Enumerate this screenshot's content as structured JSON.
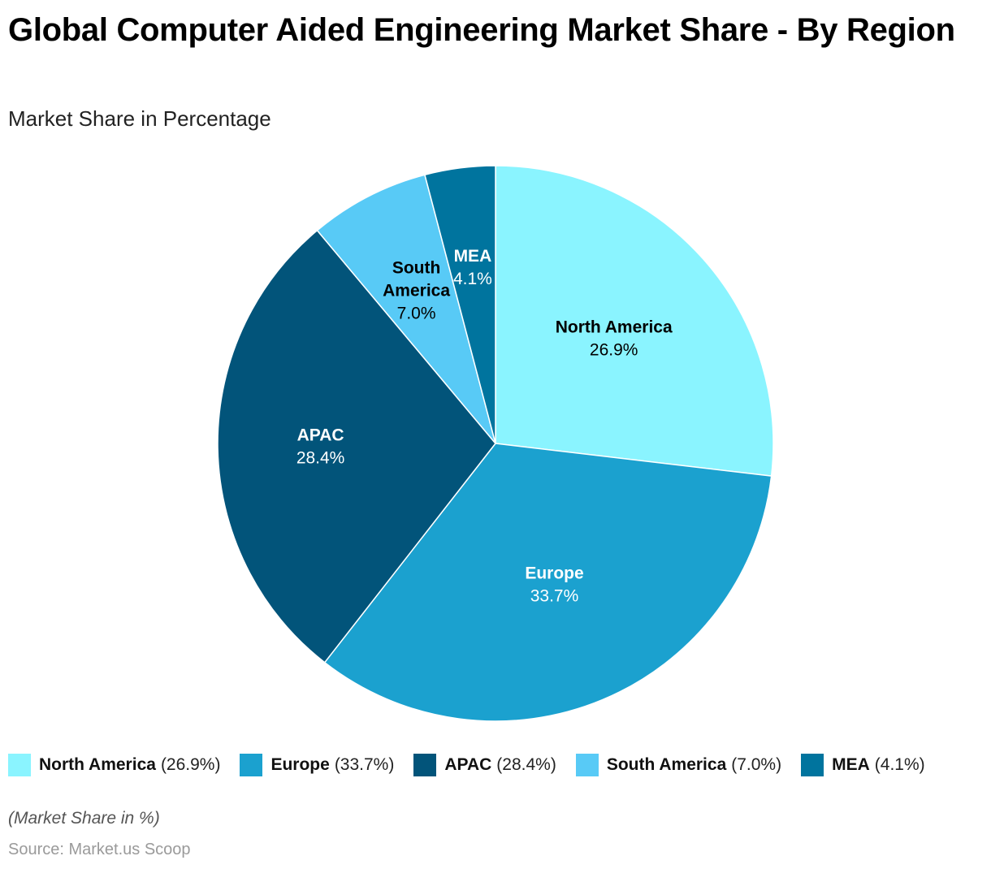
{
  "header": {
    "title": "Global Computer Aided Engineering Market Share - By Region",
    "subtitle": "Market Share in Percentage"
  },
  "chart_data": {
    "type": "pie",
    "title": "Global Computer Aided Engineering Market Share - By Region",
    "subtitle": "Market Share in Percentage",
    "unit": "%",
    "categories": [
      "North America",
      "Europe",
      "APAC",
      "South America",
      "MEA"
    ],
    "values": [
      26.9,
      33.7,
      28.4,
      7.0,
      4.1
    ],
    "value_labels": [
      "26.9%",
      "33.7%",
      "28.4%",
      "7.0%",
      "4.1%"
    ],
    "colors": [
      "#8AF4FF",
      "#1BA1CF",
      "#02547A",
      "#58CAF6",
      "#00749E"
    ],
    "label_colors": [
      "#000000",
      "#ffffff",
      "#ffffff",
      "#000000",
      "#ffffff"
    ],
    "start_angle": "12 o'clock",
    "direction": "clockwise",
    "legend_position": "bottom"
  },
  "legend": {
    "items": [
      {
        "name": "North America",
        "value": "(26.9%)",
        "color": "#8AF4FF"
      },
      {
        "name": "Europe",
        "value": "(33.7%)",
        "color": "#1BA1CF"
      },
      {
        "name": "APAC",
        "value": "(28.4%)",
        "color": "#02547A"
      },
      {
        "name": "South America",
        "value": "(7.0%)",
        "color": "#58CAF6"
      },
      {
        "name": "MEA",
        "value": "(4.1%)",
        "color": "#00749E"
      }
    ]
  },
  "footer": {
    "note": "(Market Share in %)",
    "source": "Source: Market.us Scoop"
  }
}
